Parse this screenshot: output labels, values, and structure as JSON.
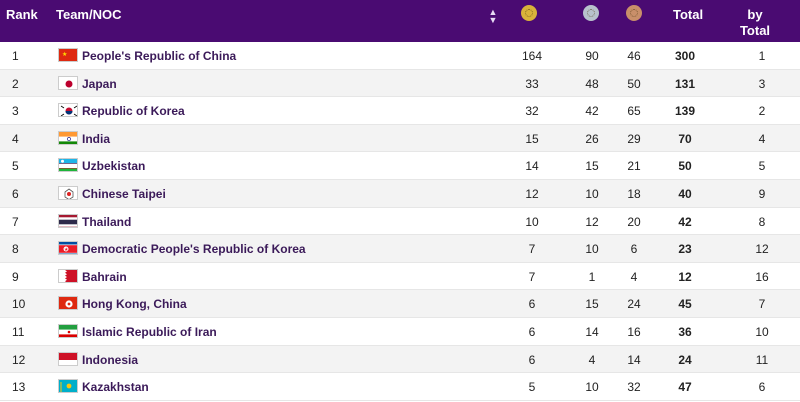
{
  "header": {
    "rank": "Rank",
    "team": "Team/NOC",
    "total": "Total",
    "by_total_line1": "by",
    "by_total_line2": "Total",
    "medal_colors": {
      "gold": "#d9b23a",
      "silver": "#b8c2cc",
      "bronze": "#c98f6a"
    }
  },
  "rows": [
    {
      "rank": "1",
      "team": "People's Republic of China",
      "gold": "164",
      "silver": "90",
      "bronze": "46",
      "total": "300",
      "by_total": "1",
      "flag": "china"
    },
    {
      "rank": "2",
      "team": "Japan",
      "gold": "33",
      "silver": "48",
      "bronze": "50",
      "total": "131",
      "by_total": "3",
      "flag": "japan"
    },
    {
      "rank": "3",
      "team": "Republic of Korea",
      "gold": "32",
      "silver": "42",
      "bronze": "65",
      "total": "139",
      "by_total": "2",
      "flag": "korea"
    },
    {
      "rank": "4",
      "team": "India",
      "gold": "15",
      "silver": "26",
      "bronze": "29",
      "total": "70",
      "by_total": "4",
      "flag": "india"
    },
    {
      "rank": "5",
      "team": "Uzbekistan",
      "gold": "14",
      "silver": "15",
      "bronze": "21",
      "total": "50",
      "by_total": "5",
      "flag": "uzbekistan"
    },
    {
      "rank": "6",
      "team": "Chinese Taipei",
      "gold": "12",
      "silver": "10",
      "bronze": "18",
      "total": "40",
      "by_total": "9",
      "flag": "taipei"
    },
    {
      "rank": "7",
      "team": "Thailand",
      "gold": "10",
      "silver": "12",
      "bronze": "20",
      "total": "42",
      "by_total": "8",
      "flag": "thailand"
    },
    {
      "rank": "8",
      "team": "Democratic People's Republic of Korea",
      "gold": "7",
      "silver": "10",
      "bronze": "6",
      "total": "23",
      "by_total": "12",
      "flag": "dprk"
    },
    {
      "rank": "9",
      "team": "Bahrain",
      "gold": "7",
      "silver": "1",
      "bronze": "4",
      "total": "12",
      "by_total": "16",
      "flag": "bahrain"
    },
    {
      "rank": "10",
      "team": "Hong Kong, China",
      "gold": "6",
      "silver": "15",
      "bronze": "24",
      "total": "45",
      "by_total": "7",
      "flag": "hongkong"
    },
    {
      "rank": "11",
      "team": "Islamic Republic of Iran",
      "gold": "6",
      "silver": "14",
      "bronze": "16",
      "total": "36",
      "by_total": "10",
      "flag": "iran"
    },
    {
      "rank": "12",
      "team": "Indonesia",
      "gold": "6",
      "silver": "4",
      "bronze": "14",
      "total": "24",
      "by_total": "11",
      "flag": "indonesia"
    },
    {
      "rank": "13",
      "team": "Kazakhstan",
      "gold": "5",
      "silver": "10",
      "bronze": "32",
      "total": "47",
      "by_total": "6",
      "flag": "kazakhstan"
    }
  ]
}
